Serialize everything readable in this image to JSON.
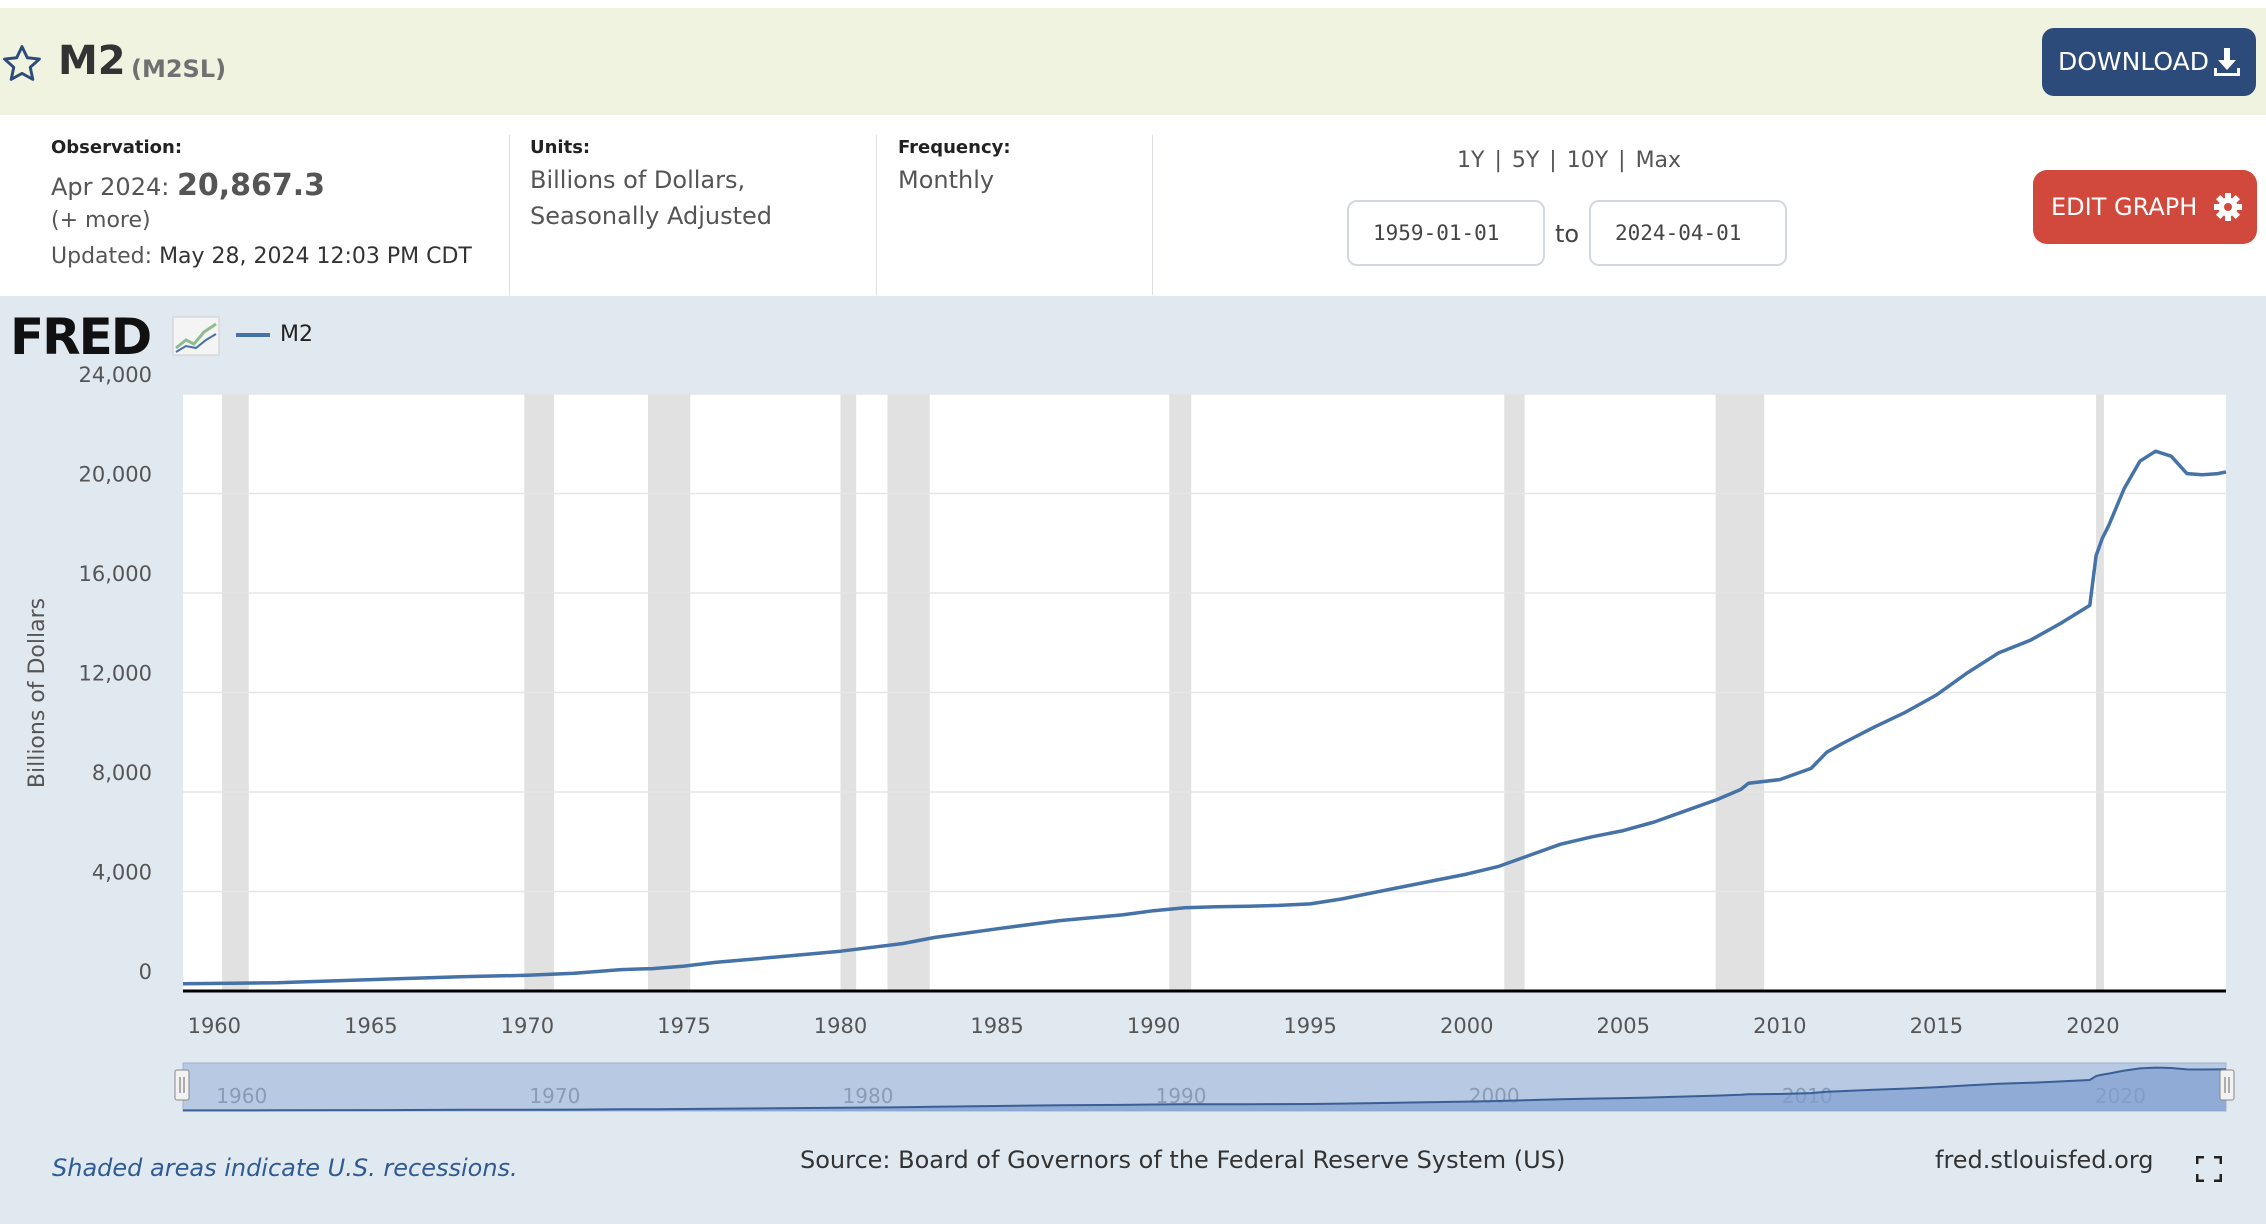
{
  "header": {
    "title": "M2",
    "series_id": "(M2SL)",
    "download_label": "DOWNLOAD",
    "star_icon": "star-outline-icon",
    "download_icon": "download-icon"
  },
  "meta": {
    "observation_label": "Observation:",
    "observation_date": "Apr 2024:",
    "observation_value": "20,867.3",
    "more_link": "(+ more)",
    "updated_label": "Updated:",
    "updated_value": "May 28, 2024 12:03 PM CDT",
    "units_label": "Units:",
    "units_line1": "Billions of Dollars,",
    "units_line2": "Seasonally Adjusted",
    "frequency_label": "Frequency:",
    "frequency_value": "Monthly"
  },
  "controls": {
    "ranges": [
      "1Y",
      "5Y",
      "10Y",
      "Max"
    ],
    "start_date": "1959-01-01",
    "to_label": "to",
    "end_date": "2024-04-01",
    "edit_label": "EDIT GRAPH",
    "edit_icon": "gear-icon"
  },
  "footer": {
    "recession_note": "Shaded areas indicate U.S. recessions.",
    "source": "Source: Board of Governors of the Federal Reserve System (US)",
    "site": "fred.stlouisfed.org",
    "fullscreen_icon": "fullscreen-icon"
  },
  "colors": {
    "line": "#4572a7",
    "recession": "#e1e1e1",
    "header_bg": "#f1f3e1",
    "graph_bg": "#e1e9f0",
    "download_btn": "#2d4b7a",
    "edit_btn": "#d0493c"
  },
  "logo": "FRED",
  "chart_data": {
    "type": "line",
    "ylabel": "Billions of Dollars",
    "ylim": [
      0,
      24000
    ],
    "yticks": [
      0,
      4000,
      8000,
      12000,
      16000,
      20000,
      24000
    ],
    "ytick_labels": [
      "0",
      "4,000",
      "8,000",
      "12,000",
      "16,000",
      "20,000",
      "24,000"
    ],
    "xlim": [
      1959.0,
      2024.25
    ],
    "xticks": [
      1960,
      1965,
      1970,
      1975,
      1980,
      1985,
      1990,
      1995,
      2000,
      2005,
      2010,
      2015,
      2020
    ],
    "xtick_labels": [
      "1960",
      "1965",
      "1970",
      "1975",
      "1980",
      "1985",
      "1990",
      "1995",
      "2000",
      "2005",
      "2010",
      "2015",
      "2020"
    ],
    "recessions": [
      [
        1960.25,
        1961.1
      ],
      [
        1969.9,
        1970.85
      ],
      [
        1973.85,
        1975.2
      ],
      [
        1980.0,
        1980.5
      ],
      [
        1981.5,
        1982.85
      ],
      [
        1990.5,
        1991.2
      ],
      [
        2001.2,
        2001.85
      ],
      [
        2007.95,
        2009.5
      ],
      [
        2020.1,
        2020.35
      ]
    ],
    "series": [
      {
        "name": "M2",
        "x": [
          1959.0,
          1962.0,
          1965.0,
          1968.0,
          1970.0,
          1971.5,
          1973.0,
          1974.0,
          1975.0,
          1976.0,
          1978.0,
          1980.0,
          1982.0,
          1983.0,
          1985.0,
          1987.0,
          1989.0,
          1990.0,
          1991.0,
          1992.0,
          1993.0,
          1994.0,
          1995.0,
          1996.0,
          1998.0,
          2000.0,
          2001.0,
          2002.0,
          2003.0,
          2004.0,
          2005.0,
          2006.0,
          2007.0,
          2008.0,
          2008.75,
          2009.0,
          2010.0,
          2011.0,
          2011.5,
          2012.0,
          2013.0,
          2014.0,
          2015.0,
          2016.0,
          2017.0,
          2018.0,
          2019.0,
          2019.9,
          2020.1,
          2020.3,
          2020.5,
          2021.0,
          2021.5,
          2022.0,
          2022.5,
          2023.0,
          2023.5,
          2024.0,
          2024.25
        ],
        "values": [
          290,
          330,
          460,
          580,
          630,
          710,
          860,
          900,
          1000,
          1150,
          1370,
          1600,
          1910,
          2150,
          2500,
          2830,
          3060,
          3230,
          3350,
          3390,
          3410,
          3440,
          3500,
          3700,
          4200,
          4700,
          5000,
          5450,
          5900,
          6200,
          6450,
          6800,
          7250,
          7700,
          8100,
          8350,
          8500,
          8950,
          9600,
          9950,
          10600,
          11200,
          11900,
          12800,
          13600,
          14100,
          14800,
          15500,
          17500,
          18200,
          18700,
          20200,
          21300,
          21700,
          21500,
          20800,
          20750,
          20800,
          20867
        ]
      }
    ]
  }
}
